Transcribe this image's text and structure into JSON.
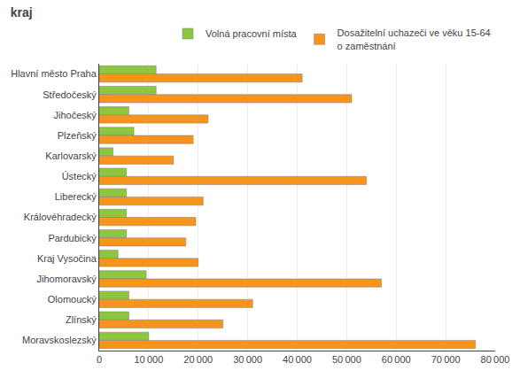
{
  "chart_data": {
    "type": "bar",
    "orientation": "horizontal",
    "title": "kraj",
    "categories": [
      "Hlavní město Praha",
      "Středočeský",
      "Jihočeský",
      "Plzeňský",
      "Karlovarský",
      "Ústecký",
      "Liberecký",
      "Královéhradecký",
      "Pardubický",
      "Kraj Vysočina",
      "Jihomoravský",
      "Olomoucký",
      "Zlínský",
      "Moravskoslezský"
    ],
    "series": [
      {
        "name": "Volná pracovní místa",
        "color": "#8dc63f",
        "values": [
          11500,
          11500,
          6000,
          7000,
          2800,
          5500,
          5500,
          5500,
          5500,
          3800,
          9500,
          6000,
          6000,
          10000
        ]
      },
      {
        "name": "Dosažitelní uchazeči ve věku 15-64\no zaměstnání",
        "color": "#f7941d",
        "values": [
          41000,
          51000,
          22000,
          19000,
          15000,
          54000,
          21000,
          19500,
          17500,
          20000,
          57000,
          31000,
          25000,
          76000
        ]
      }
    ],
    "xlim": [
      0,
      80000
    ],
    "xticks": [
      0,
      {
        "value": 10000,
        "label": "10 000"
      },
      {
        "value": 20000,
        "label": "20 000"
      },
      {
        "value": 30000,
        "label": "30 000"
      },
      {
        "value": 40000,
        "label": "40 000"
      },
      {
        "value": 50000,
        "label": "50 000"
      },
      {
        "value": 60000,
        "label": "60 000"
      },
      {
        "value": 70000,
        "label": "70 000"
      },
      {
        "value": 80000,
        "label": "80 000"
      }
    ],
    "grid": true,
    "legend": "upper right"
  }
}
